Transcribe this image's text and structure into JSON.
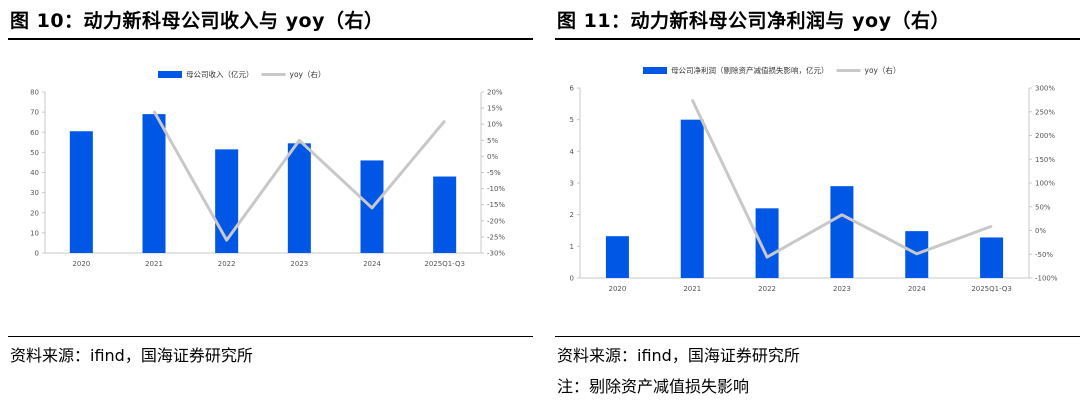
{
  "left": {
    "title": "图 10：动力新科母公司收入与 yoy（右）",
    "source": "资料来源：ifind，国海证券研究所",
    "chart_data": {
      "type": "bar",
      "categories": [
        "2020",
        "2021",
        "2022",
        "2023",
        "2024",
        "2025Q1-Q3"
      ],
      "series": [
        {
          "name": "母公司收入（亿元）",
          "type": "bar",
          "axis": "left",
          "color": "#0057E6",
          "values": [
            60.5,
            69,
            51.5,
            54.5,
            46,
            38
          ]
        },
        {
          "name": "yoy（右）",
          "type": "line",
          "axis": "right",
          "color": "#C8C8C8",
          "values": [
            null,
            14,
            -26,
            5,
            -16,
            11
          ]
        }
      ],
      "y_left": {
        "min": 0,
        "max": 80,
        "step": 10,
        "suffix": ""
      },
      "y_right": {
        "min": -30,
        "max": 20,
        "step": 5,
        "suffix": "%"
      },
      "legend_position": "top-center",
      "grid": false
    }
  },
  "right": {
    "title": "图 11：动力新科母公司净利润与 yoy（右）",
    "source": "资料来源：ifind，国海证券研究所",
    "note": "注：剔除资产减值损失影响",
    "chart_data": {
      "type": "bar",
      "categories": [
        "2020",
        "2021",
        "2022",
        "2023",
        "2024",
        "2025Q1-Q3"
      ],
      "series": [
        {
          "name": "母公司净利润（剔除资产减值损失影响，亿元）",
          "type": "bar",
          "axis": "left",
          "color": "#0057E6",
          "values": [
            1.32,
            5.0,
            2.2,
            2.9,
            1.48,
            1.28
          ]
        },
        {
          "name": "yoy（右）",
          "type": "line",
          "axis": "right",
          "color": "#C8C8C8",
          "values": [
            null,
            275,
            -56,
            33,
            -49,
            9
          ]
        }
      ],
      "y_left": {
        "min": 0,
        "max": 6,
        "step": 1,
        "suffix": ""
      },
      "y_right": {
        "min": -100,
        "max": 300,
        "step": 50,
        "suffix": "%"
      },
      "legend_position": "top-center",
      "grid": false
    }
  }
}
